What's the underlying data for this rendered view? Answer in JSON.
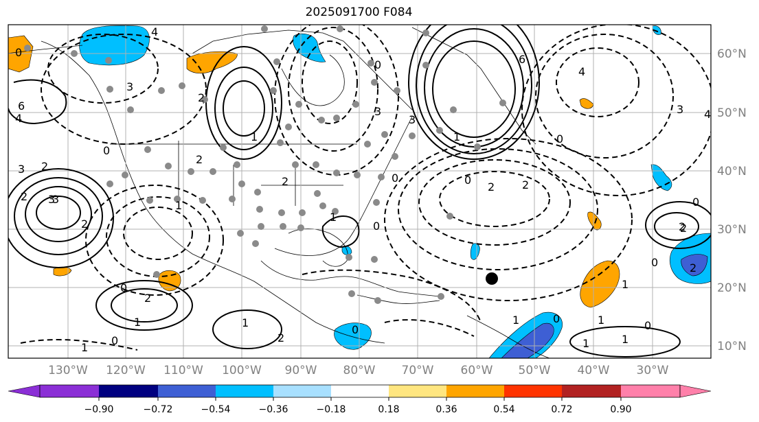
{
  "title": "2025091700 F084",
  "map": {
    "lon_labels": [
      "130°W",
      "120°W",
      "110°W",
      "100°W",
      "90°W",
      "80°W",
      "70°W",
      "60°W",
      "50°W",
      "40°W",
      "30°W"
    ],
    "lat_labels": [
      "60°N",
      "50°N",
      "40°N",
      "30°N",
      "20°N",
      "10°N"
    ],
    "contour_labels": [
      "0",
      "3",
      "6",
      "4",
      "2",
      "3",
      "1",
      "0",
      "2",
      "3",
      "0",
      "1",
      "2",
      "6",
      "4",
      "0",
      "2",
      "2",
      "0",
      "4",
      "3",
      "0",
      "3",
      "1",
      "2",
      "4",
      "2",
      "2",
      "3",
      "0",
      "1",
      "0",
      "2",
      "0",
      "1",
      "0",
      "1",
      "0",
      "1",
      "1",
      "1",
      "0",
      "2",
      "2",
      "0",
      "3",
      "2",
      "1",
      "1",
      "0",
      "2",
      "1"
    ],
    "marker": "storm-center"
  },
  "colorbar": {
    "colors": [
      "#8b2fd6",
      "#3a2bd0",
      "#000080",
      "#3e5fd4",
      "#00bfff",
      "#a8e0ff",
      "#ffffff",
      "#ffe680",
      "#ffa500",
      "#ff3300",
      "#b22222",
      "#ff80aa",
      "#ff80aa"
    ],
    "tick_labels": [
      "−0.90",
      "−0.72",
      "−0.54",
      "−0.36",
      "−0.18",
      "0.18",
      "0.36",
      "0.54",
      "0.72",
      "0.90"
    ]
  }
}
